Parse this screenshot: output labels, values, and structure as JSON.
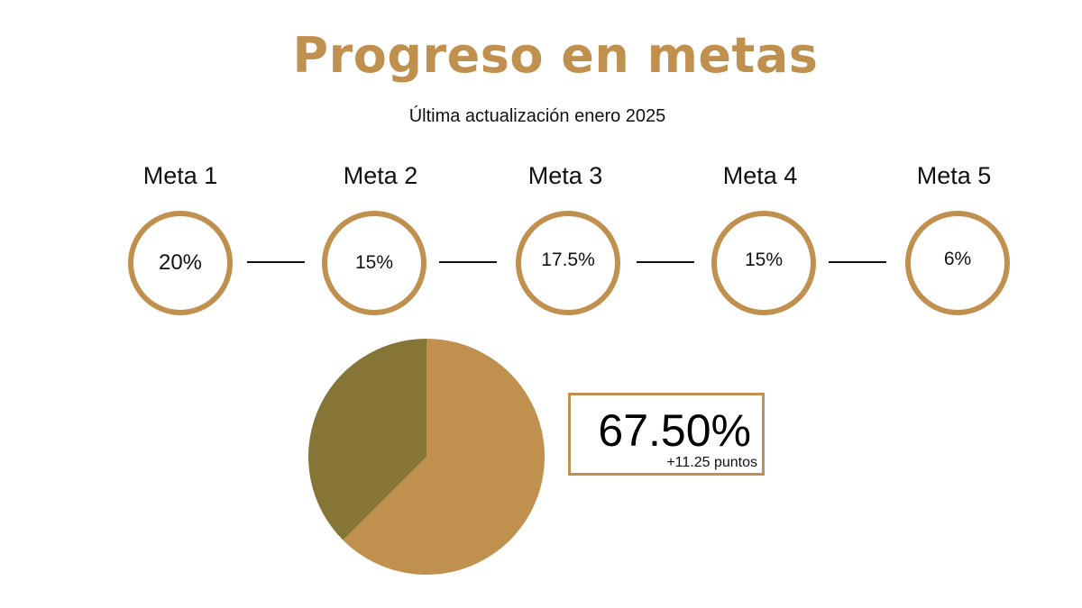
{
  "title": "Progreso en metas",
  "subtitle": "Última actualización enero 2025",
  "colors": {
    "accent": "#C0904F",
    "dark_slice": "#857537",
    "text": "#111111"
  },
  "goals": [
    {
      "label": "Meta 1",
      "value": "20%"
    },
    {
      "label": "Meta 2",
      "value": "15%"
    },
    {
      "label": "Meta 3",
      "value": "17.5%"
    },
    {
      "label": "Meta 4",
      "value": "15%"
    },
    {
      "label": "Meta 5",
      "value": "6%"
    }
  ],
  "kpi": {
    "value": "67.50%",
    "delta": "+11.25 puntos"
  },
  "chart_data": {
    "type": "pie",
    "title": "",
    "slices": [
      {
        "value": 62.5,
        "color": "#C0904F"
      },
      {
        "value": 37.5,
        "color": "#857537"
      }
    ],
    "start_angle_deg": 0,
    "direction": "clockwise"
  }
}
